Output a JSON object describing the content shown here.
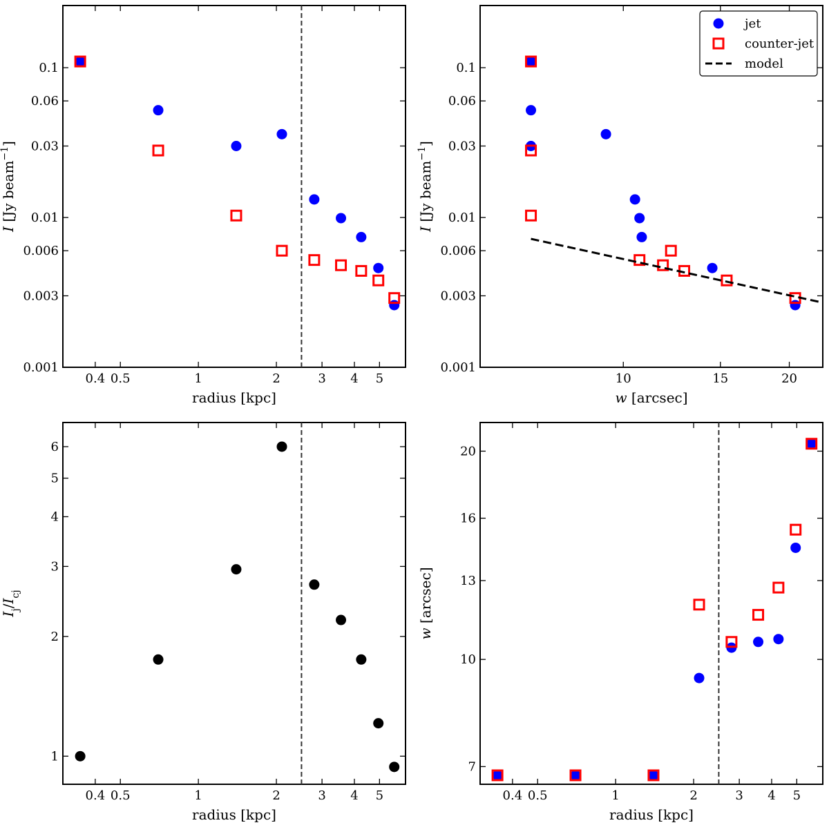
{
  "figure": {
    "colors": {
      "jet": "#0000ff",
      "counter_jet": "#ff0000",
      "ratio": "#000000",
      "model": "#000000",
      "marker_fill_square": "#ffffff",
      "vline": "#333333"
    }
  },
  "chart_data": [
    {
      "id": "top-left",
      "type": "scatter",
      "x_scale": "log",
      "y_scale": "log",
      "xlabel": "radius [kpc]",
      "ylabel": "I [Jy beam^-1]",
      "xlim": [
        0.3,
        6.3
      ],
      "ylim": [
        0.001,
        0.26
      ],
      "x_ticks": [
        {
          "value": 0.4,
          "label": "0.4"
        },
        {
          "value": 0.5,
          "label": "0.5"
        },
        {
          "value": 1,
          "label": "1"
        },
        {
          "value": 2,
          "label": "2"
        },
        {
          "value": 3,
          "label": "3"
        },
        {
          "value": 4,
          "label": "4"
        },
        {
          "value": 5,
          "label": "5"
        }
      ],
      "y_ticks": [
        {
          "value": 0.001,
          "label": "0.001"
        },
        {
          "value": 0.003,
          "label": "0.003"
        },
        {
          "value": 0.006,
          "label": "0.006"
        },
        {
          "value": 0.01,
          "label": "0.01"
        },
        {
          "value": 0.03,
          "label": "0.03"
        },
        {
          "value": 0.06,
          "label": "0.06"
        },
        {
          "value": 0.1,
          "label": "0.1"
        }
      ],
      "vline_x": 2.5,
      "series": [
        {
          "name": "jet",
          "marker": "circle",
          "points": [
            [
              0.35,
              0.11
            ],
            [
              0.7,
              0.052
            ],
            [
              1.4,
              0.03
            ],
            [
              2.1,
              0.036
            ],
            [
              2.8,
              0.0132
            ],
            [
              3.55,
              0.0099
            ],
            [
              4.25,
              0.0074
            ],
            [
              4.95,
              0.0046
            ],
            [
              5.7,
              0.0026
            ]
          ]
        },
        {
          "name": "counter-jet",
          "marker": "square",
          "points": [
            [
              0.35,
              0.11
            ],
            [
              0.7,
              0.028
            ],
            [
              1.4,
              0.0103
            ],
            [
              2.1,
              0.006
            ],
            [
              2.8,
              0.0052
            ],
            [
              3.55,
              0.0048
            ],
            [
              4.25,
              0.0044
            ],
            [
              4.95,
              0.0038
            ],
            [
              5.7,
              0.0029
            ]
          ]
        }
      ]
    },
    {
      "id": "top-right",
      "type": "scatter",
      "x_scale": "log",
      "y_scale": "log",
      "xlabel": "w [arcsec]",
      "ylabel": "I [Jy beam^-1]",
      "xlim": [
        5.5,
        23
      ],
      "ylim": [
        0.001,
        0.26
      ],
      "x_ticks": [
        {
          "value": 10,
          "label": "10"
        },
        {
          "value": 15,
          "label": "15"
        },
        {
          "value": 20,
          "label": "20"
        }
      ],
      "y_ticks": [
        {
          "value": 0.001,
          "label": "0.001"
        },
        {
          "value": 0.003,
          "label": "0.003"
        },
        {
          "value": 0.006,
          "label": "0.006"
        },
        {
          "value": 0.01,
          "label": "0.01"
        },
        {
          "value": 0.03,
          "label": "0.03"
        },
        {
          "value": 0.06,
          "label": "0.06"
        },
        {
          "value": 0.1,
          "label": "0.1"
        }
      ],
      "legend": {
        "placement": "top-right",
        "entries": [
          {
            "label": "jet",
            "marker": "circle"
          },
          {
            "label": "counter-jet",
            "marker": "square"
          },
          {
            "label": "model",
            "marker": "dashed-line"
          }
        ]
      },
      "series": [
        {
          "name": "jet",
          "marker": "circle",
          "points": [
            [
              6.8,
              0.11
            ],
            [
              6.8,
              0.052
            ],
            [
              6.8,
              0.03
            ],
            [
              9.3,
              0.036
            ],
            [
              10.5,
              0.0132
            ],
            [
              10.7,
              0.0099
            ],
            [
              10.8,
              0.0074
            ],
            [
              14.5,
              0.0046
            ],
            [
              20.5,
              0.0026
            ]
          ]
        },
        {
          "name": "counter-jet",
          "marker": "square",
          "points": [
            [
              6.8,
              0.11
            ],
            [
              6.8,
              0.028
            ],
            [
              6.8,
              0.0103
            ],
            [
              12.2,
              0.006
            ],
            [
              10.7,
              0.0052
            ],
            [
              11.8,
              0.0048
            ],
            [
              12.9,
              0.0044
            ],
            [
              15.4,
              0.0038
            ],
            [
              20.5,
              0.0029
            ]
          ]
        },
        {
          "name": "model",
          "marker": "dashed-line",
          "points": [
            [
              6.8,
              0.0072
            ],
            [
              23,
              0.0027
            ]
          ]
        }
      ]
    },
    {
      "id": "bottom-left",
      "type": "scatter",
      "x_scale": "log",
      "y_scale": "log",
      "xlabel": "radius [kpc]",
      "ylabel": "I_j / I_cj",
      "xlim": [
        0.3,
        6.3
      ],
      "ylim": [
        0.85,
        6.9
      ],
      "x_ticks": [
        {
          "value": 0.4,
          "label": "0.4"
        },
        {
          "value": 0.5,
          "label": "0.5"
        },
        {
          "value": 1,
          "label": "1"
        },
        {
          "value": 2,
          "label": "2"
        },
        {
          "value": 3,
          "label": "3"
        },
        {
          "value": 4,
          "label": "4"
        },
        {
          "value": 5,
          "label": "5"
        }
      ],
      "y_ticks": [
        {
          "value": 1,
          "label": "1"
        },
        {
          "value": 2,
          "label": "2"
        },
        {
          "value": 3,
          "label": "3"
        },
        {
          "value": 4,
          "label": "4"
        },
        {
          "value": 5,
          "label": "5"
        },
        {
          "value": 6,
          "label": "6"
        }
      ],
      "vline_x": 2.5,
      "series": [
        {
          "name": "ratio",
          "marker": "circle",
          "points": [
            [
              0.35,
              1.0
            ],
            [
              0.7,
              1.75
            ],
            [
              1.4,
              2.95
            ],
            [
              2.1,
              6.0
            ],
            [
              2.8,
              2.7
            ],
            [
              3.55,
              2.2
            ],
            [
              4.25,
              1.75
            ],
            [
              4.95,
              1.21
            ],
            [
              5.7,
              0.94
            ]
          ]
        }
      ]
    },
    {
      "id": "bottom-right",
      "type": "scatter",
      "x_scale": "log",
      "y_scale": "log",
      "xlabel": "radius [kpc]",
      "ylabel": "w [arcsec]",
      "xlim": [
        0.3,
        6.3
      ],
      "ylim": [
        6.6,
        22
      ],
      "x_ticks": [
        {
          "value": 0.4,
          "label": "0.4"
        },
        {
          "value": 0.5,
          "label": "0.5"
        },
        {
          "value": 1,
          "label": "1"
        },
        {
          "value": 2,
          "label": "2"
        },
        {
          "value": 3,
          "label": "3"
        },
        {
          "value": 4,
          "label": "4"
        },
        {
          "value": 5,
          "label": "5"
        }
      ],
      "y_ticks": [
        {
          "value": 7,
          "label": "7"
        },
        {
          "value": 10,
          "label": "10"
        },
        {
          "value": 13,
          "label": "13"
        },
        {
          "value": 16,
          "label": "16"
        },
        {
          "value": 20,
          "label": "20"
        }
      ],
      "vline_x": 2.5,
      "series": [
        {
          "name": "jet",
          "marker": "circle",
          "points": [
            [
              0.35,
              6.8
            ],
            [
              0.7,
              6.8
            ],
            [
              1.4,
              6.8
            ],
            [
              2.1,
              9.4
            ],
            [
              2.8,
              10.4
            ],
            [
              3.55,
              10.6
            ],
            [
              4.25,
              10.7
            ],
            [
              4.95,
              14.5
            ],
            [
              5.7,
              20.5
            ]
          ]
        },
        {
          "name": "counter-jet",
          "marker": "square",
          "points": [
            [
              0.35,
              6.8
            ],
            [
              0.7,
              6.8
            ],
            [
              1.4,
              6.8
            ],
            [
              2.1,
              12.0
            ],
            [
              2.8,
              10.6
            ],
            [
              3.55,
              11.6
            ],
            [
              4.25,
              12.7
            ],
            [
              4.95,
              15.4
            ],
            [
              5.7,
              20.5
            ]
          ]
        }
      ]
    }
  ]
}
